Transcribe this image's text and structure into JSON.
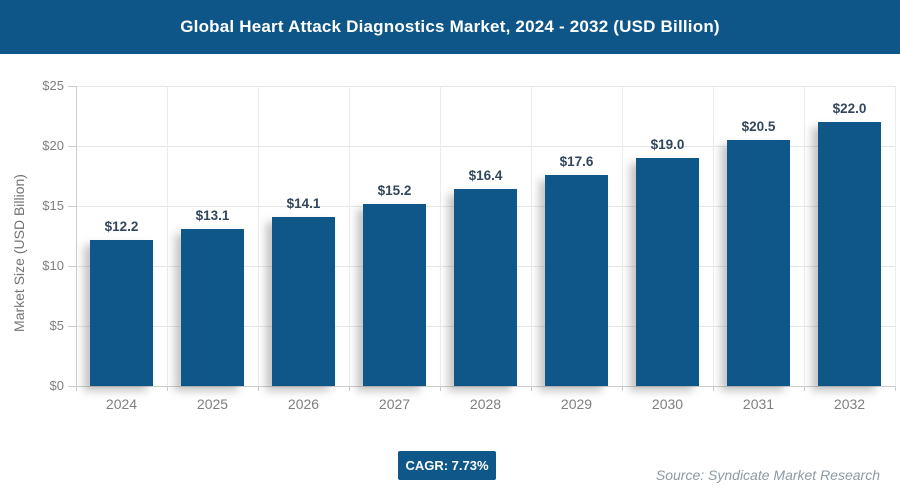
{
  "header": {
    "title": "Global Heart Attack Diagnostics Market, 2024 - 2032 (USD Billion)"
  },
  "footer": {
    "cagr_label": "CAGR: 7.73%",
    "source": "Source: Syndicate Market Research"
  },
  "colors": {
    "brand_blue": "#0f5788",
    "value_label": "#33475c",
    "axis_text": "#808080",
    "gridline": "#e7e7e7"
  },
  "chart_data": {
    "type": "bar",
    "title": "Global Heart Attack Diagnostics Market, 2024 - 2032 (USD Billion)",
    "categories": [
      "2024",
      "2025",
      "2026",
      "2027",
      "2028",
      "2029",
      "2030",
      "2031",
      "2032"
    ],
    "values": [
      12.2,
      13.1,
      14.1,
      15.2,
      16.4,
      17.6,
      19.0,
      20.5,
      22.0
    ],
    "display_values": [
      "$12.2",
      "$13.1",
      "$14.1",
      "$15.2",
      "$16.4",
      "$17.6",
      "$19.0",
      "$20.5",
      "$22.0"
    ],
    "xlabel": "",
    "ylabel": "Market Size (USD Billion)",
    "ylim": [
      0,
      25
    ],
    "ytick_labels": [
      "$0",
      "$5",
      "$10",
      "$15",
      "$20",
      "$25"
    ],
    "grid": true,
    "legend": false,
    "bar_color": "#0f5788"
  }
}
